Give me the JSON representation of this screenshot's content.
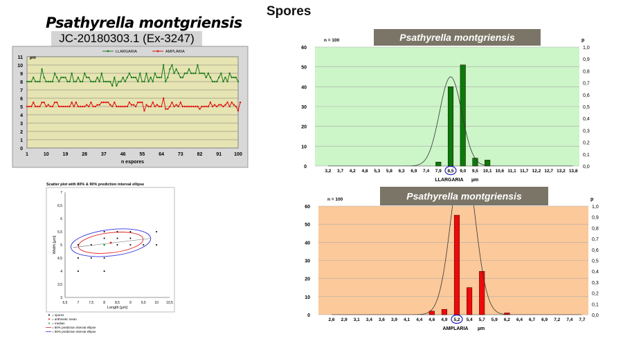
{
  "page_title": "Spores",
  "species": "Psathyrella montgriensis",
  "collection_id": "JC-20180303.1  (Ex-3247)",
  "chart_data": [
    {
      "type": "line",
      "id": "measurements",
      "xlabel": "n espores",
      "ylabel": "µm",
      "ylim": [
        0,
        11
      ],
      "x_ticks": [
        "1",
        "10",
        "19",
        "28",
        "37",
        "46",
        "55",
        "64",
        "73",
        "82",
        "91",
        "100"
      ],
      "y_ticks": [
        "0",
        "1",
        "2",
        "3",
        "4",
        "5",
        "6",
        "7",
        "8",
        "9",
        "10",
        "11"
      ],
      "legend_placement": "top-center",
      "series": [
        {
          "name": "LLARGARIA",
          "color": "#1a7a1a",
          "values": [
            8,
            8,
            8,
            8.5,
            8,
            8,
            8,
            9.5,
            8.5,
            8,
            8,
            8,
            8,
            9,
            8.5,
            8,
            8.5,
            8.5,
            8.5,
            8,
            8,
            9,
            8,
            8,
            8.5,
            8,
            8,
            9,
            8.5,
            8.5,
            8,
            8,
            8,
            8.5,
            8,
            9,
            8,
            8,
            8,
            8,
            7.5,
            8.5,
            7.5,
            8,
            8,
            8.5,
            8,
            8.5,
            9,
            8.5,
            8.5,
            8.5,
            8,
            9,
            8,
            8,
            9,
            8,
            8.5,
            8,
            9,
            8.5,
            8.5,
            8.5,
            10,
            8,
            8.5,
            9.5,
            10,
            9,
            9.5,
            9,
            8.5,
            8.5,
            9,
            9,
            9.5,
            9,
            9,
            9,
            10,
            9,
            9,
            9,
            8.5,
            9,
            8.5,
            8,
            8,
            8,
            8.5,
            9,
            8,
            8.5,
            8,
            9,
            8.5,
            8.5,
            8.5,
            8
          ]
        },
        {
          "name": "AMPLÀRIA",
          "color": "#e01010",
          "values": [
            5,
            5,
            5,
            5.5,
            5,
            5,
            5,
            5.5,
            5.5,
            5,
            5.2,
            5,
            5,
            5.5,
            5.5,
            5,
            5,
            5,
            5,
            5,
            5,
            5.5,
            5,
            5.5,
            5,
            5,
            5,
            5,
            5.2,
            5,
            5.5,
            5,
            5,
            5.2,
            5.2,
            5.5,
            5.5,
            5.5,
            5.5,
            5.2,
            5,
            5.5,
            5,
            5,
            5,
            5,
            5,
            5,
            5.5,
            5.2,
            5.2,
            5,
            5.5,
            5.5,
            5.5,
            4.5,
            5.2,
            5,
            5,
            5.5,
            5,
            5.2,
            5,
            5,
            6,
            4.7,
            4.7,
            5,
            5.5,
            5,
            5.2,
            5,
            5.5,
            5,
            5,
            5,
            5,
            5,
            5,
            5,
            5,
            4.7,
            5,
            5,
            5,
            5,
            5.5,
            5,
            5.2,
            5,
            5.2,
            5.2,
            5,
            5.2,
            5.5,
            5,
            5.5,
            5.2,
            5,
            4.5,
            5.5
          ]
        }
      ]
    },
    {
      "type": "scatter",
      "id": "scatter",
      "title": "Scatter plot with 80% & 90% prediction interval ellipse",
      "xlabel": "Length [µm]",
      "ylabel": "Width [µm]",
      "xlim": [
        6.5,
        10.5
      ],
      "ylim": [
        3,
        7
      ],
      "x_ticks": [
        "6,5",
        "7",
        "7,5",
        "8",
        "8,5",
        "9",
        "9,5",
        "10",
        "10,5"
      ],
      "y_ticks": [
        "3",
        "3,5",
        "4",
        "4,5",
        "5",
        "5,5",
        "6",
        "6,5",
        "7"
      ],
      "points": [
        [
          7,
          5
        ],
        [
          7,
          4.5
        ],
        [
          7,
          4
        ],
        [
          7.5,
          5
        ],
        [
          7.5,
          4.5
        ],
        [
          8,
          5.5
        ],
        [
          8,
          5.25
        ],
        [
          8,
          4.5
        ],
        [
          8,
          4
        ],
        [
          8.5,
          5.5
        ],
        [
          8.5,
          5.25
        ],
        [
          8.5,
          5
        ],
        [
          9,
          5.5
        ],
        [
          9,
          5.25
        ],
        [
          9,
          5
        ],
        [
          9.5,
          5
        ],
        [
          10,
          5.5
        ],
        [
          10,
          5
        ]
      ],
      "mean": [
        8.25,
        5.08
      ],
      "median": [
        8,
        5
      ],
      "regression": [
        [
          6.8,
          4.9
        ],
        [
          9.8,
          5.25
        ]
      ],
      "legend": [
        "= spores",
        "= arithmetic mean",
        "= median",
        "= 80% prediction interval ellipse",
        "= 90% prediction interval ellipse"
      ]
    },
    {
      "type": "bar",
      "id": "length-histogram",
      "title": "Psathyrella montgriensis",
      "n_label": "n = 100",
      "right_axis_label": "p",
      "xlabel": "LLARGARIA",
      "unit": "µm",
      "highlighted": "8,5",
      "ylim": [
        0,
        60
      ],
      "y_ticks": [
        "0",
        "10",
        "20",
        "30",
        "40",
        "50",
        "60"
      ],
      "right_ticks": [
        "0,0",
        "0,1",
        "0,2",
        "0,3",
        "0,4",
        "0,5",
        "0,6",
        "0,7",
        "0,8",
        "0,9",
        "1,0"
      ],
      "categories": [
        "3,2",
        "3,7",
        "4,2",
        "4,8",
        "5,3",
        "5,8",
        "6,3",
        "6,9",
        "7,4",
        "7,9",
        "8,5",
        "9,0",
        "9,5",
        "10,1",
        "10,6",
        "11,1",
        "11,7",
        "12,2",
        "12,7",
        "13,2",
        "13,8"
      ],
      "values": [
        0,
        0,
        0,
        0,
        0,
        0,
        0,
        0,
        0,
        2,
        40,
        51,
        4,
        3,
        0,
        0,
        0,
        0,
        0,
        0,
        0
      ],
      "curve": {
        "mean_index": 10,
        "sd_index": 0.9,
        "peak_p": 0.75
      },
      "bar_color": "#0a7a0a",
      "bg_color": "#ccf5c8"
    },
    {
      "type": "bar",
      "id": "width-histogram",
      "title": "Psathyrella montgriensis",
      "n_label": "n = 100",
      "right_axis_label": "p",
      "xlabel": "AMPLARIA",
      "unit": "µm",
      "highlighted": "5,2",
      "ylim": [
        0,
        60
      ],
      "y_ticks": [
        "0",
        "10",
        "20",
        "30",
        "40",
        "50",
        "60"
      ],
      "right_ticks": [
        "0,0",
        "0,1",
        "0,2",
        "0,3",
        "0,4",
        "0,5",
        "0,6",
        "0,7",
        "0,8",
        "0,9",
        "1,0"
      ],
      "categories": [
        "2,6",
        "2,9",
        "3,1",
        "3,4",
        "3,6",
        "3,9",
        "4,1",
        "4,4",
        "4,6",
        "4,9",
        "5,2",
        "5,4",
        "5,7",
        "5,9",
        "6,2",
        "6,4",
        "6,7",
        "6,9",
        "7,2",
        "7,4",
        "7,7"
      ],
      "values": [
        0,
        0,
        0,
        0,
        0,
        0,
        0,
        0,
        2,
        3,
        55,
        15,
        24,
        0,
        1,
        0,
        0,
        0,
        0,
        0,
        0
      ],
      "curve": {
        "mean_index": 10.5,
        "sd_index": 0.95,
        "peak_p": 1.5
      },
      "bar_color": "#ee0a0a",
      "bg_color": "#fcc99a"
    }
  ]
}
